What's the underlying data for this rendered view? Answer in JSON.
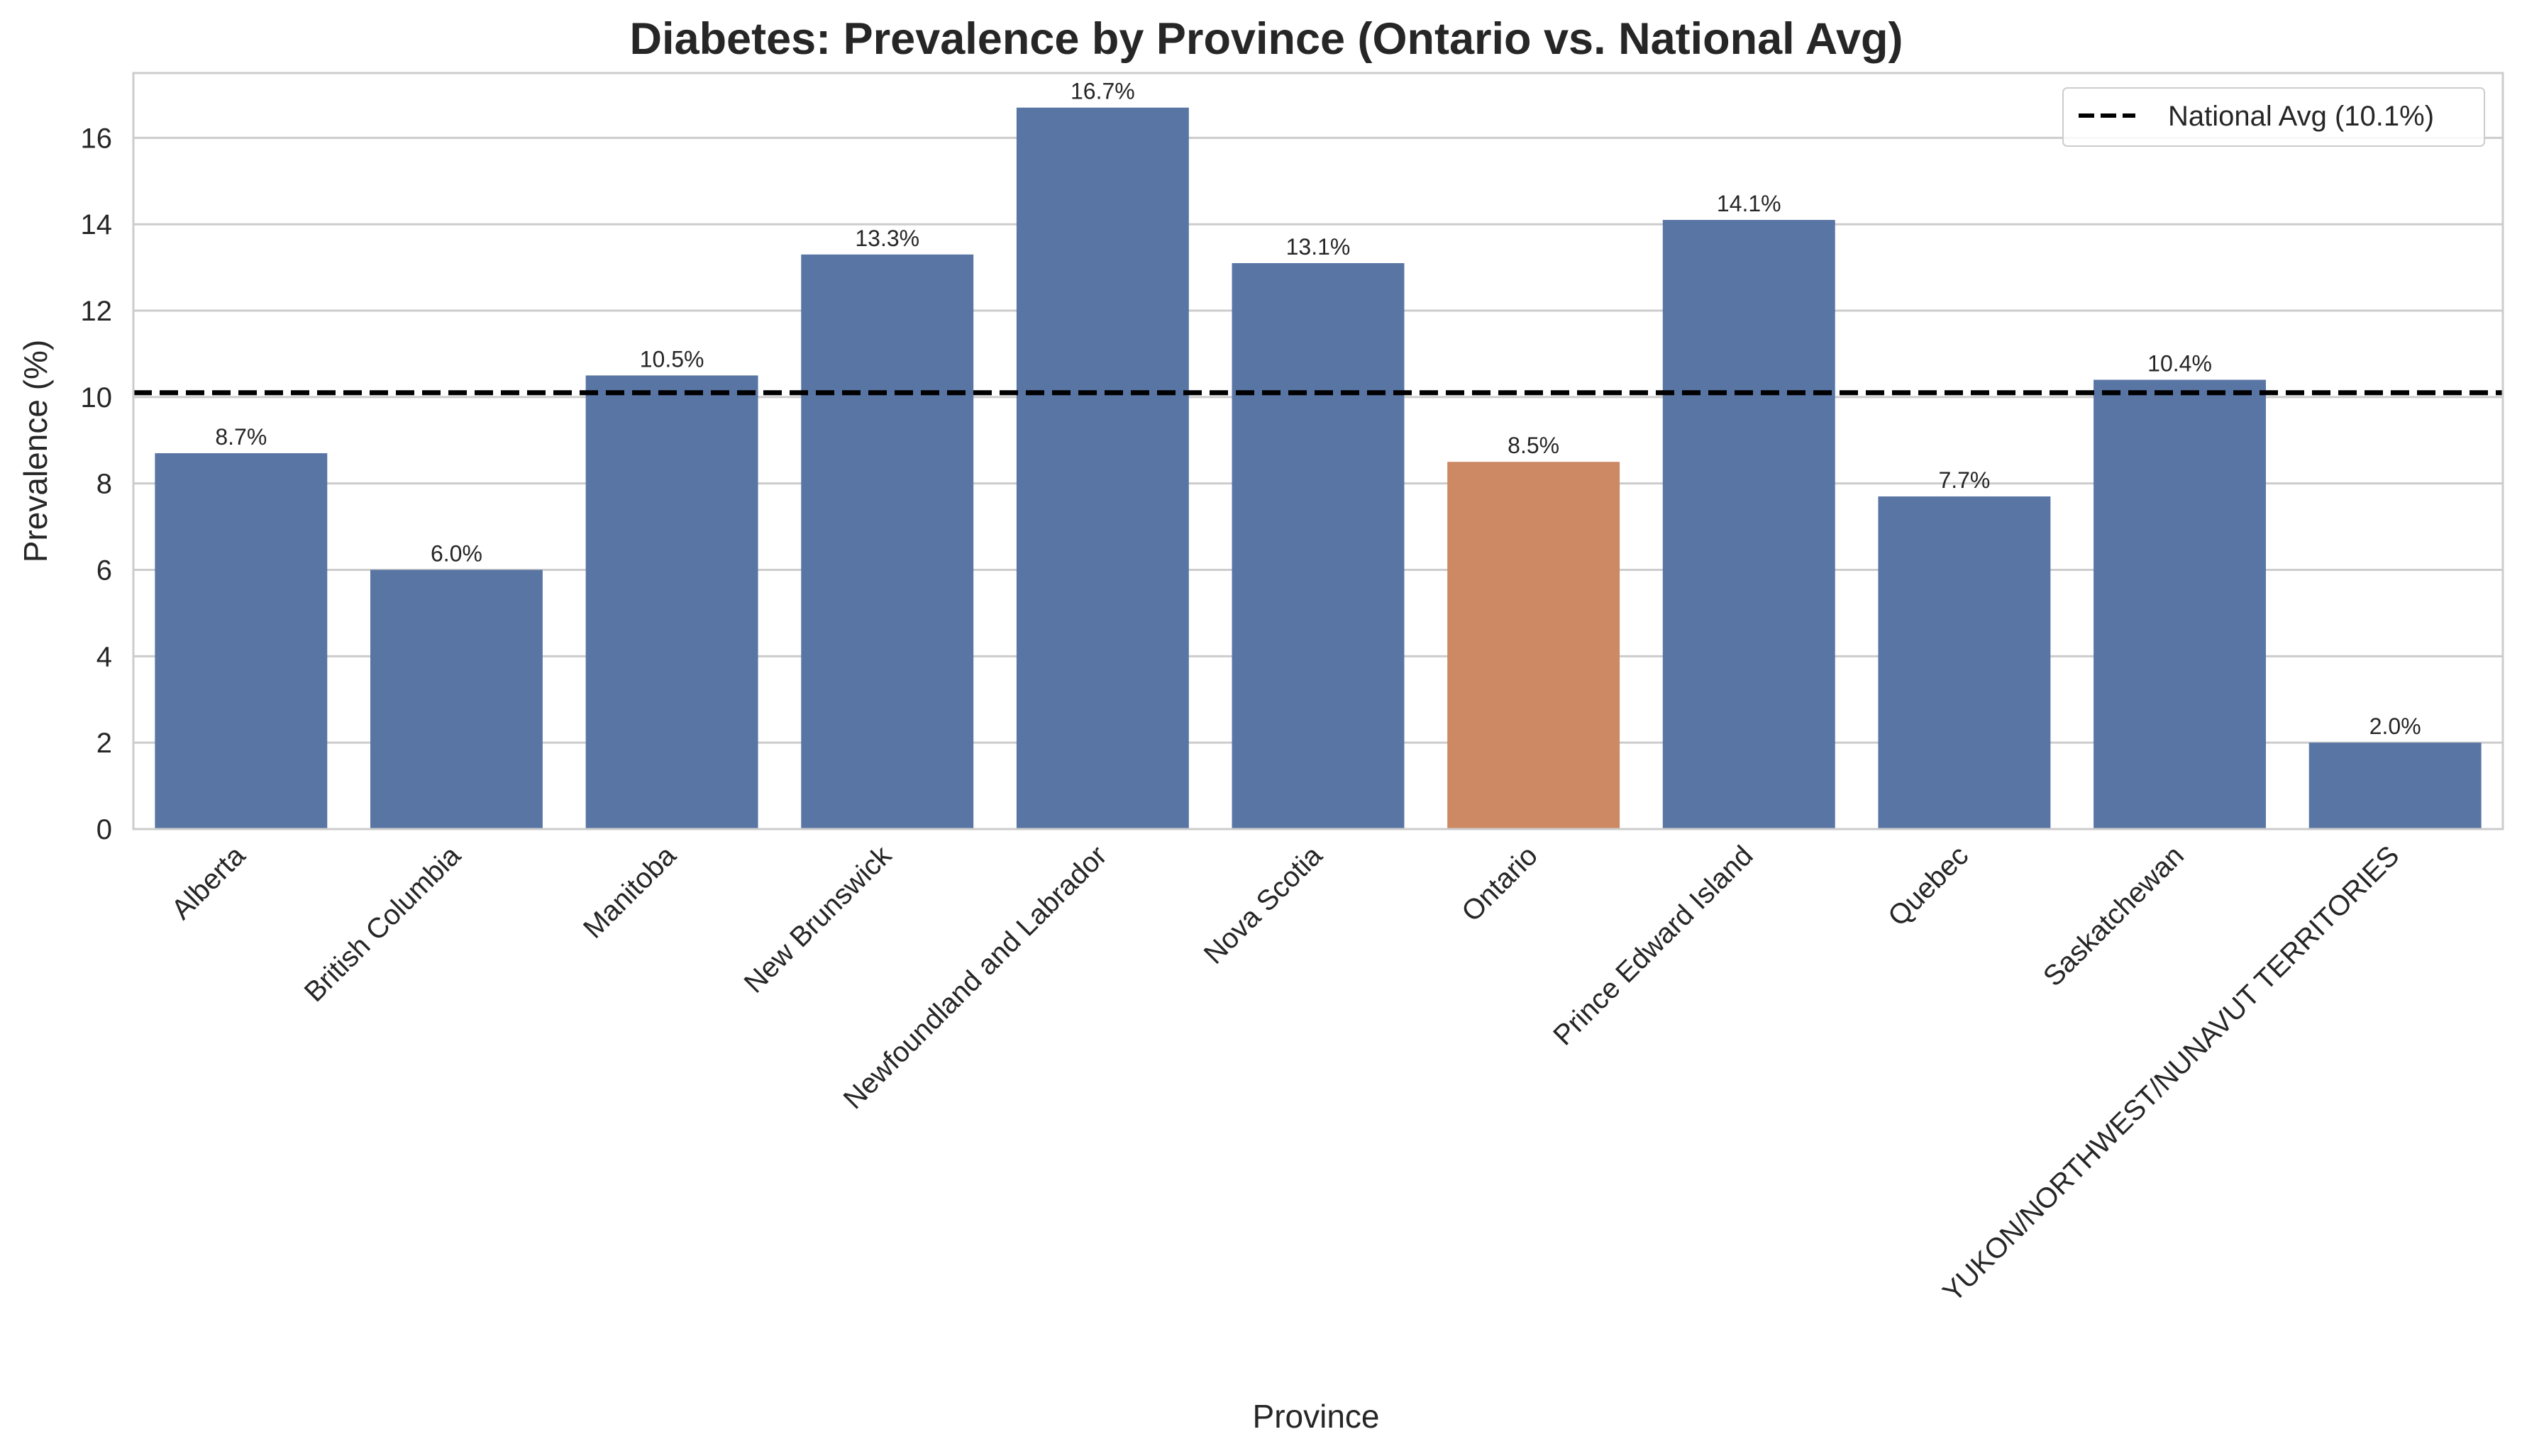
{
  "chart_data": {
    "type": "bar",
    "title": "Diabetes: Prevalence by Province (Ontario vs. National Avg)",
    "xlabel": "Province",
    "ylabel": "Prevalence (%)",
    "ylim": [
      0,
      17.5
    ],
    "yticks": [
      0,
      2,
      4,
      6,
      8,
      10,
      12,
      14,
      16
    ],
    "grid": "horizontal",
    "categories": [
      "Alberta",
      "British Columbia",
      "Manitoba",
      "New Brunswick",
      "Newfoundland and Labrador",
      "Nova Scotia",
      "Ontario",
      "Prince Edward Island",
      "Quebec",
      "Saskatchewan",
      "YUKON/NORTHWEST/NUNAVUT TERRITORIES"
    ],
    "values": [
      8.7,
      6.0,
      10.5,
      13.3,
      16.7,
      13.1,
      8.5,
      14.1,
      7.7,
      10.4,
      2.0
    ],
    "data_labels": [
      "8.7%",
      "6.0%",
      "10.5%",
      "13.3%",
      "16.7%",
      "13.1%",
      "8.5%",
      "14.1%",
      "7.7%",
      "10.4%",
      "2.0%"
    ],
    "colors": {
      "default_bar": "#5975a4",
      "highlight_bar": "#cc8963",
      "reference_line": "#000000"
    },
    "highlight_category": "Ontario",
    "reference_line": {
      "value": 10.1,
      "style": "dashed",
      "label": "National Avg (10.1%)"
    },
    "legend": {
      "placement": "top-right",
      "entries": [
        "National Avg (10.1%)"
      ]
    }
  }
}
